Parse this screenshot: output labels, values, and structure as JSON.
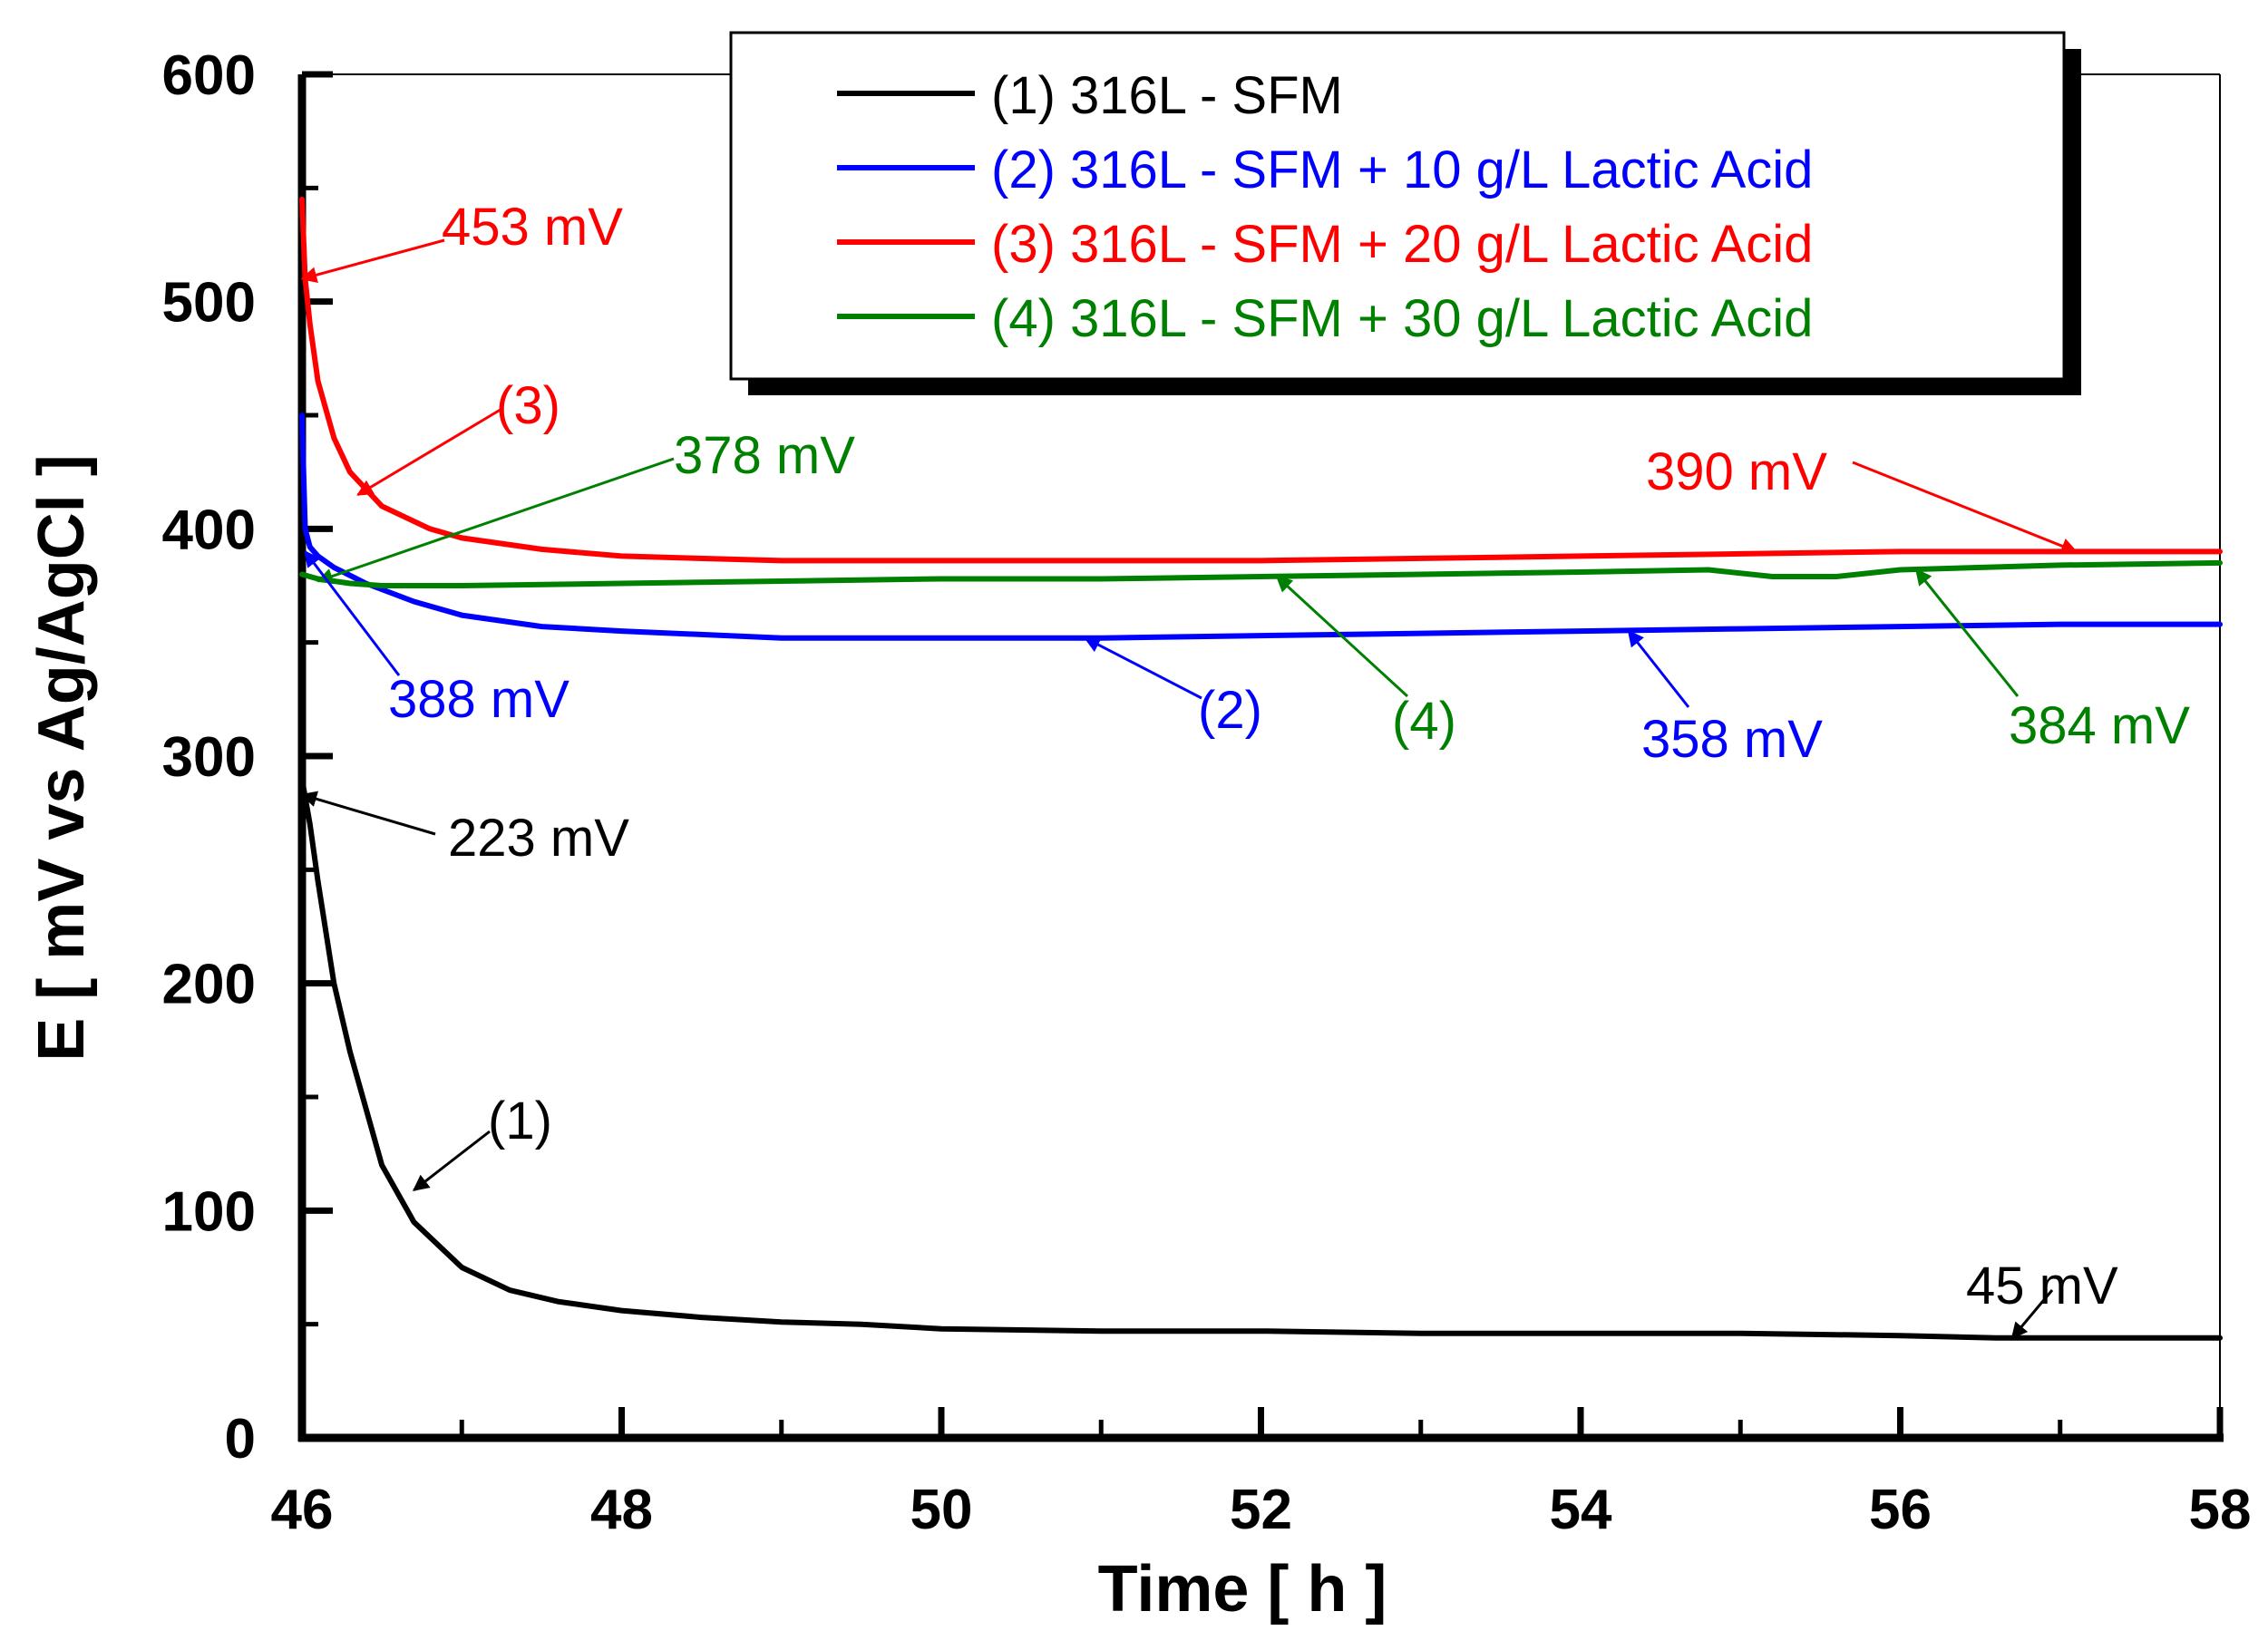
{
  "chart_data": {
    "type": "line",
    "title": "",
    "xlabel": "Time [ h ]",
    "ylabel": "E [ mV vs Ag/AgCl ]",
    "xlim": [
      46,
      58
    ],
    "ylim": [
      0,
      600
    ],
    "xticks": [
      "46",
      "48",
      "50",
      "52",
      "54",
      "56",
      "58"
    ],
    "yticks": [
      "0",
      "100",
      "200",
      "300",
      "400",
      "500",
      "600"
    ],
    "grid": false,
    "legend_position": "top-right",
    "colors": {
      "black": "#000000",
      "blue": "#0000ff",
      "red": "#ff0000",
      "green": "#008000"
    },
    "series": [
      {
        "name": "(1) 316L - SFM",
        "color": "#000000",
        "x": [
          46.0,
          46.05,
          46.1,
          46.2,
          46.3,
          46.5,
          46.7,
          47.0,
          47.3,
          47.6,
          48.0,
          48.5,
          49.0,
          49.5,
          50.0,
          51.0,
          52.0,
          53.0,
          54.0,
          55.0,
          56.0,
          56.6,
          57.0,
          58.0
        ],
        "y": [
          290,
          270,
          245,
          200,
          170,
          120,
          95,
          75,
          65,
          60,
          56,
          53,
          51,
          50,
          48,
          47,
          47,
          46,
          46,
          46,
          45,
          44,
          44,
          44
        ]
      },
      {
        "name": "(2) 316L - SFM + 10 g/L Lactic Acid",
        "color": "#0000ff",
        "x": [
          46.0,
          46.02,
          46.05,
          46.1,
          46.2,
          46.4,
          46.7,
          47.0,
          47.5,
          48.0,
          49.0,
          50.0,
          51.0,
          52.0,
          53.0,
          54.0,
          55.0,
          56.0,
          57.0,
          58.0
        ],
        "y": [
          450,
          400,
          392,
          388,
          383,
          376,
          368,
          362,
          357,
          355,
          352,
          352,
          352,
          353,
          354,
          355,
          356,
          357,
          358,
          358
        ]
      },
      {
        "name": "(3) 316L - SFM + 20 g/L Lactic Acid",
        "color": "#ff0000",
        "x": [
          46.0,
          46.02,
          46.05,
          46.1,
          46.2,
          46.3,
          46.5,
          46.8,
          47.0,
          47.5,
          48.0,
          49.0,
          50.0,
          51.0,
          52.0,
          53.0,
          54.0,
          55.0,
          56.0,
          57.0,
          58.0
        ],
        "y": [
          545,
          510,
          490,
          465,
          440,
          425,
          410,
          400,
          396,
          391,
          388,
          386,
          386,
          386,
          386,
          387,
          388,
          389,
          390,
          390,
          390
        ]
      },
      {
        "name": "(4) 316L - SFM + 30 g/L Lactic Acid",
        "color": "#008000",
        "x": [
          46.0,
          46.05,
          46.1,
          46.2,
          46.3,
          46.5,
          47.0,
          48.0,
          49.0,
          50.0,
          51.0,
          52.0,
          53.0,
          54.0,
          54.8,
          55.2,
          55.6,
          56.0,
          57.0,
          58.0
        ],
        "y": [
          380,
          379,
          378,
          377,
          376,
          375,
          375,
          376,
          377,
          378,
          378,
          379,
          380,
          381,
          382,
          379,
          379,
          382,
          384,
          385
        ]
      }
    ],
    "annotations": [
      {
        "text": "453 mV",
        "color": "#ff0000",
        "arrow_to": [
          46.0,
          510
        ]
      },
      {
        "text": "(3)",
        "color": "#ff0000",
        "arrow_to": [
          46.35,
          415
        ]
      },
      {
        "text": "378 mV",
        "color": "#008000",
        "arrow_to": [
          46.1,
          377
        ]
      },
      {
        "text": "390 mV",
        "color": "#ff0000",
        "arrow_to": [
          57.1,
          390
        ]
      },
      {
        "text": "388 mV",
        "color": "#0000ff",
        "arrow_to": [
          46.02,
          390
        ]
      },
      {
        "text": "(2)",
        "color": "#0000ff",
        "arrow_to": [
          50.9,
          352
        ]
      },
      {
        "text": "(4)",
        "color": "#008000",
        "arrow_to": [
          52.1,
          379
        ]
      },
      {
        "text": "358 mV",
        "color": "#0000ff",
        "arrow_to": [
          54.3,
          355
        ]
      },
      {
        "text": "384 mV",
        "color": "#008000",
        "arrow_to": [
          56.1,
          382
        ]
      },
      {
        "text": "223 mV",
        "color": "#000000",
        "arrow_to": [
          46.0,
          283
        ]
      },
      {
        "text": "(1)",
        "color": "#000000",
        "arrow_to": [
          46.7,
          109
        ]
      },
      {
        "text": "45 mV",
        "color": "#000000",
        "arrow_to": [
          56.7,
          44
        ]
      }
    ]
  }
}
